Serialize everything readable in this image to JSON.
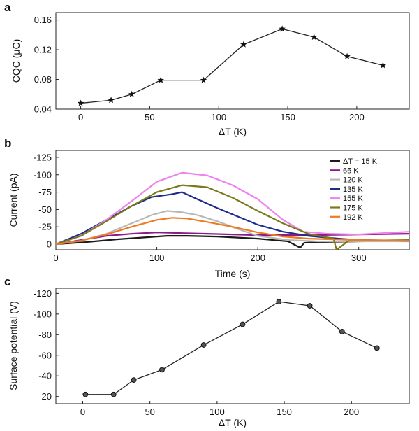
{
  "chart_data": [
    {
      "panel": "a",
      "type": "line",
      "xlabel": "ΔT (K)",
      "ylabel": "CQC (μC)",
      "xlim": [
        -18,
        238
      ],
      "ylim": [
        0.04,
        0.17
      ],
      "xticks": [
        0,
        50,
        100,
        150,
        200
      ],
      "yticks": [
        0.04,
        0.08,
        0.12,
        0.16
      ],
      "ytick_labels": [
        "0.04",
        "0.08",
        "0.12",
        "0.16"
      ],
      "marker": "star",
      "series": [
        {
          "x": [
            0,
            22,
            37,
            58,
            89,
            118,
            146,
            169,
            193,
            219
          ],
          "y": [
            0.048,
            0.052,
            0.06,
            0.079,
            0.079,
            0.127,
            0.148,
            0.137,
            0.111,
            0.099
          ]
        }
      ]
    },
    {
      "panel": "b",
      "type": "line",
      "xlabel": "Time (s)",
      "ylabel": "Current (pA)",
      "xlim": [
        0,
        350
      ],
      "ylim": [
        8,
        -135
      ],
      "xticks": [
        0,
        100,
        200,
        300
      ],
      "yticks": [
        0,
        -25,
        -50,
        -75,
        -100,
        -125
      ],
      "ytick_labels": [
        "0",
        "-25",
        "-50",
        "-75",
        "-100",
        "-125"
      ],
      "legend_position": "top-right",
      "series": [
        {
          "name": "ΔT = 15 K",
          "color": "#1a1a1a",
          "x": [
            0,
            30,
            60,
            90,
            110,
            130,
            160,
            200,
            230,
            238,
            242,
            246,
            260,
            300,
            350
          ],
          "y": [
            0,
            -3,
            -7,
            -10,
            -12,
            -12,
            -11,
            -8,
            -4,
            2,
            5,
            -2,
            -3,
            -4,
            -5
          ]
        },
        {
          "name": "65 K",
          "color": "#8b1a8b",
          "x": [
            0,
            25,
            50,
            75,
            100,
            125,
            150,
            200,
            250,
            300,
            350
          ],
          "y": [
            0,
            -6,
            -12,
            -15,
            -17,
            -16,
            -15,
            -13,
            -13,
            -14,
            -15
          ]
        },
        {
          "name": "120 K",
          "color": "#b8b8b8",
          "x": [
            0,
            25,
            50,
            75,
            95,
            110,
            125,
            140,
            160,
            180,
            200,
            230,
            260,
            300,
            350
          ],
          "y": [
            0,
            -5,
            -15,
            -30,
            -42,
            -48,
            -46,
            -42,
            -33,
            -22,
            -12,
            -6,
            -4,
            -4,
            -4
          ]
        },
        {
          "name": "135 K",
          "color": "#1f2d8a",
          "x": [
            0,
            25,
            50,
            75,
            95,
            115,
            125,
            140,
            160,
            180,
            200,
            225,
            250,
            280,
            300,
            350
          ],
          "y": [
            0,
            -15,
            -35,
            -55,
            -68,
            -72,
            -75,
            -65,
            -52,
            -40,
            -28,
            -18,
            -12,
            -8,
            -6,
            -5
          ]
        },
        {
          "name": "155 K",
          "color": "#ee82ee",
          "x": [
            0,
            25,
            50,
            75,
            100,
            125,
            150,
            175,
            200,
            225,
            245,
            270,
            300,
            350
          ],
          "y": [
            0,
            -12,
            -35,
            -62,
            -90,
            -103,
            -99,
            -85,
            -65,
            -35,
            -18,
            -15,
            -14,
            -18
          ]
        },
        {
          "name": "175 K",
          "color": "#7a7a1a",
          "x": [
            0,
            25,
            50,
            75,
            100,
            125,
            150,
            175,
            200,
            225,
            250,
            275,
            278,
            290,
            350
          ],
          "y": [
            0,
            -12,
            -33,
            -55,
            -75,
            -85,
            -82,
            -67,
            -48,
            -30,
            -15,
            -8,
            8,
            -5,
            -6
          ]
        },
        {
          "name": "192 K",
          "color": "#ee7a22",
          "x": [
            0,
            25,
            50,
            75,
            100,
            115,
            130,
            150,
            175,
            200,
            225,
            250,
            300,
            350
          ],
          "y": [
            0,
            -5,
            -14,
            -25,
            -35,
            -38,
            -37,
            -32,
            -25,
            -17,
            -11,
            -8,
            -6,
            -5
          ]
        }
      ]
    },
    {
      "panel": "c",
      "type": "line",
      "xlabel": "ΔT (K)",
      "ylabel": "Surface potential (V)",
      "xlim": [
        -20,
        243
      ],
      "ylim": [
        -13,
        -125
      ],
      "xticks": [
        0,
        50,
        100,
        150,
        200
      ],
      "yticks": [
        -20,
        -40,
        -60,
        -80,
        -100,
        -120
      ],
      "ytick_labels": [
        "-20",
        "-40",
        "-60",
        "-80",
        "-100",
        "-120"
      ],
      "marker": "circle",
      "series": [
        {
          "x": [
            2,
            23,
            38,
            59,
            90,
            119,
            146,
            169,
            193,
            219
          ],
          "y": [
            -22,
            -22,
            -36,
            -46,
            -70,
            -90,
            -112,
            -108,
            -83,
            -67
          ]
        }
      ]
    }
  ]
}
